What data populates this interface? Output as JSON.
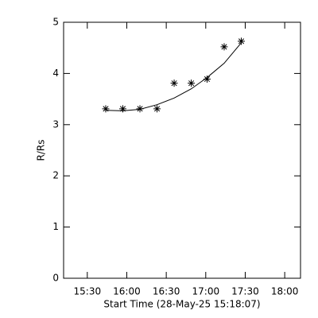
{
  "chart_data": {
    "type": "scatter",
    "x_label": "Start Time (28-May-25 15:18:07)",
    "y_label": "R/Rs",
    "x": [
      944,
      957,
      970,
      983,
      996,
      1009,
      1021,
      1034,
      1047
    ],
    "y": [
      3.31,
      3.31,
      3.31,
      3.31,
      3.81,
      3.81,
      3.89,
      4.52,
      4.63
    ],
    "fit": [
      3.28,
      3.27,
      3.3,
      3.39,
      3.52,
      3.7,
      3.92,
      4.2,
      4.6
    ],
    "color": "#000000",
    "xlim": [
      912,
      1092
    ],
    "ylim": [
      0,
      5
    ],
    "xticks": [
      {
        "value": 930,
        "label": "15:30"
      },
      {
        "value": 960,
        "label": "16:00"
      },
      {
        "value": 990,
        "label": "16:30"
      },
      {
        "value": 1020,
        "label": "17:00"
      },
      {
        "value": 1050,
        "label": "17:30"
      },
      {
        "value": 1080,
        "label": "18:00"
      }
    ],
    "yticks": [
      0,
      1,
      2,
      3,
      4,
      5
    ]
  }
}
